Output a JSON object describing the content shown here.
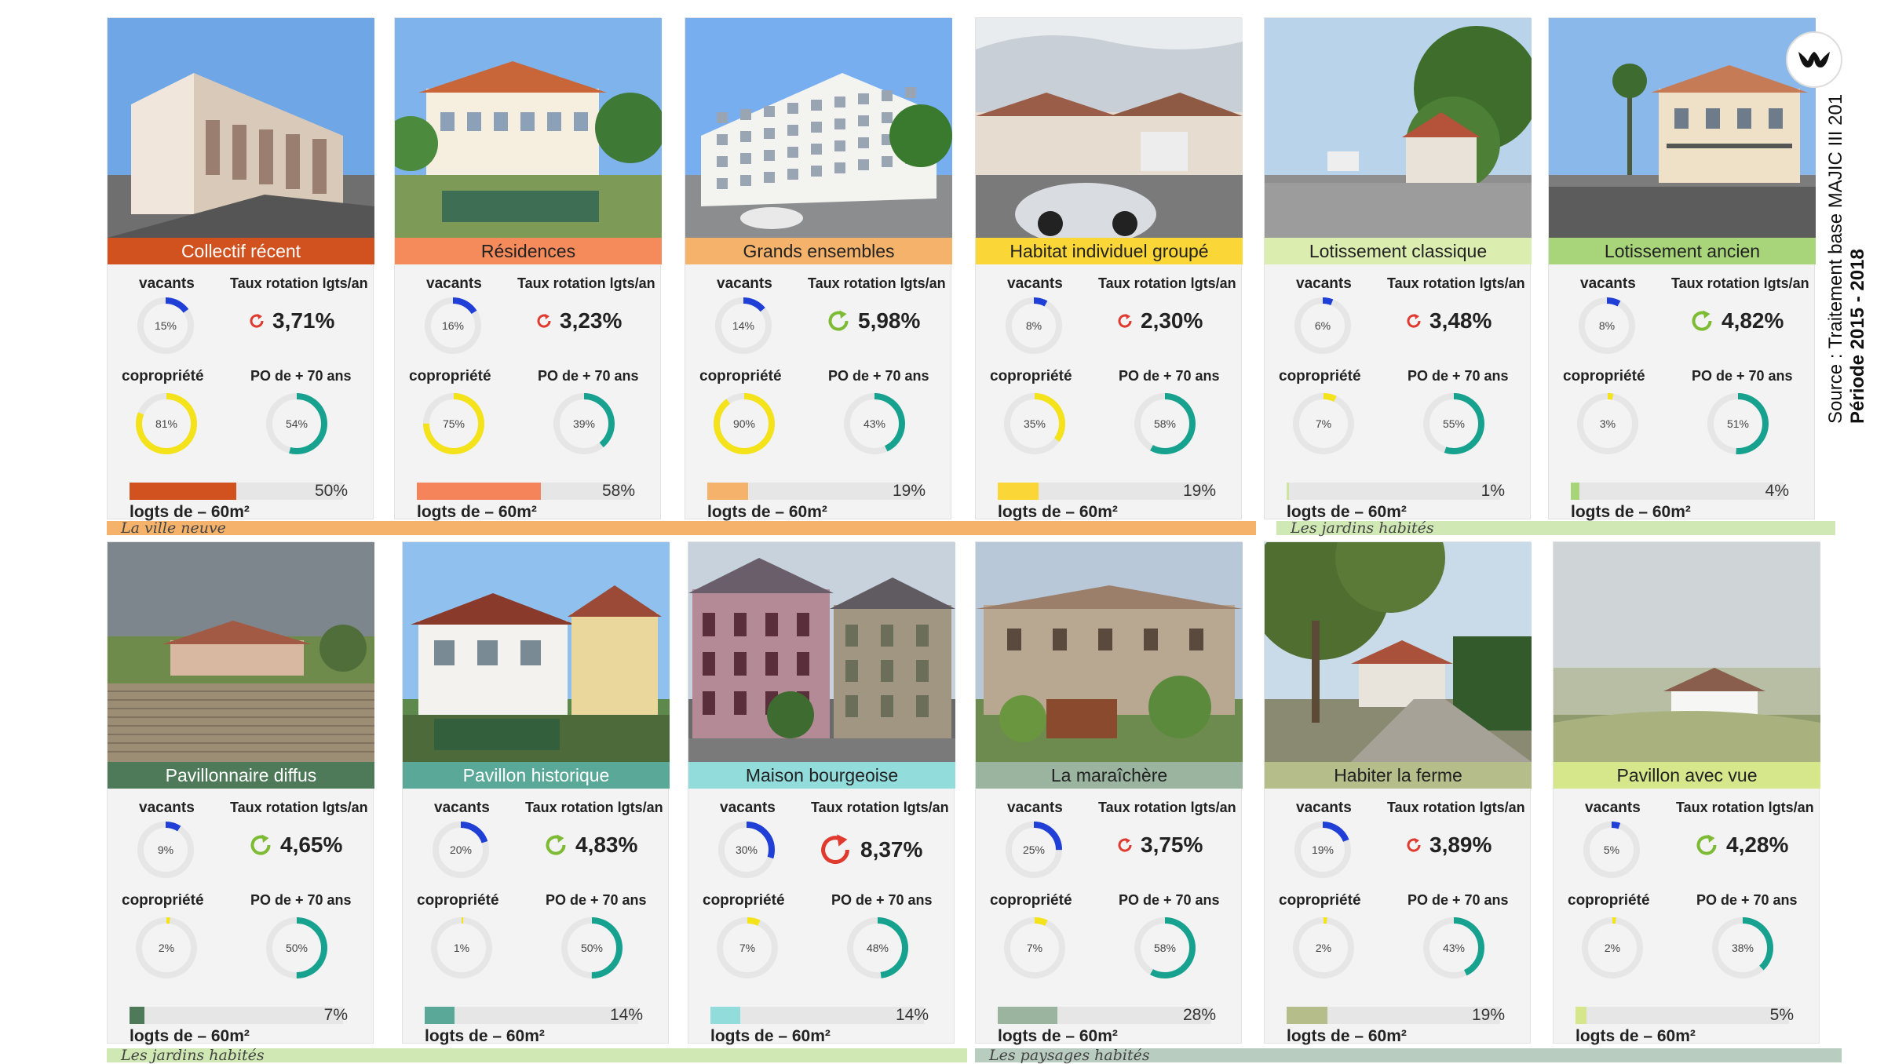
{
  "source": {
    "line1": "Source : Traitement base MAJIC III 201",
    "line2": "Période 2015 - 2018"
  },
  "groups": [
    {
      "label": "La ville neuve",
      "color": "#f5b26b"
    },
    {
      "label": "Les jardins habités",
      "color": "#cfe8b4"
    },
    {
      "label": "Les jardins habités",
      "color": "#cfe8b4"
    },
    {
      "label": "Les paysages habités",
      "color": "#b9ccc0"
    }
  ],
  "headers": {
    "vacants": "vacants",
    "rotation": "Taux rotation lgts/an",
    "copro": "copropriété",
    "po": "PO de + 70 ans",
    "logts": "logts de – 60m²"
  },
  "colors": {
    "vacants": "#1f3fd6",
    "copro": "#f4e21a",
    "po": "#16a28f",
    "track": "#e6e6e6",
    "rot_red": "#e03a2f",
    "rot_green": "#7dbb35"
  },
  "cards": [
    {
      "label": "Collectif récent",
      "color": "#d2521f",
      "text": "#ffffff",
      "vacants": "15%",
      "vacants_v": 15,
      "rotation": "3,71%",
      "rot_icon": "red",
      "copro": "81%",
      "copro_v": 81,
      "po": "54%",
      "po_v": 54,
      "logts": "50%",
      "logts_v": 50,
      "bar": "#d2521f",
      "scene": "apartments"
    },
    {
      "label": "Résidences",
      "color": "#f58a5b",
      "text": "#222222",
      "vacants": "16%",
      "vacants_v": 16,
      "rotation": "3,23%",
      "rot_icon": "red",
      "copro": "75%",
      "copro_v": 75,
      "po": "39%",
      "po_v": 39,
      "logts": "58%",
      "logts_v": 58,
      "bar": "#f5845a",
      "scene": "residence"
    },
    {
      "label": "Grands ensembles",
      "color": "#f5b26b",
      "text": "#222222",
      "vacants": "14%",
      "vacants_v": 14,
      "rotation": "5,98%",
      "rot_icon": "green",
      "copro": "90%",
      "copro_v": 90,
      "po": "43%",
      "po_v": 43,
      "logts": "19%",
      "logts_v": 19,
      "bar": "#f5b26b",
      "scene": "tower"
    },
    {
      "label": "Habitat individuel groupé",
      "color": "#fbd637",
      "text": "#222222",
      "vacants": "8%",
      "vacants_v": 8,
      "rotation": "2,30%",
      "rot_icon": "red",
      "copro": "35%",
      "copro_v": 35,
      "po": "58%",
      "po_v": 58,
      "logts": "19%",
      "logts_v": 19,
      "bar": "#fbd637",
      "scene": "rowhouses"
    },
    {
      "label": "Lotissement classique",
      "color": "#dcedb0",
      "text": "#222222",
      "vacants": "6%",
      "vacants_v": 6,
      "rotation": "3,48%",
      "rot_icon": "red",
      "copro": "7%",
      "copro_v": 7,
      "po": "55%",
      "po_v": 55,
      "logts": "1%",
      "logts_v": 1,
      "bar": "#cfe59f",
      "scene": "street"
    },
    {
      "label": "Lotissement ancien",
      "color": "#a8d57a",
      "text": "#222222",
      "vacants": "8%",
      "vacants_v": 8,
      "rotation": "4,82%",
      "rot_icon": "green",
      "copro": "3%",
      "copro_v": 3,
      "po": "51%",
      "po_v": 51,
      "logts": "4%",
      "logts_v": 4,
      "bar": "#a8d57a",
      "scene": "villa"
    },
    {
      "label": "Pavillonnaire diffus",
      "color": "#4e7a5a",
      "text": "#ffffff",
      "vacants": "9%",
      "vacants_v": 9,
      "rotation": "4,65%",
      "rot_icon": "green",
      "copro": "2%",
      "copro_v": 2,
      "po": "50%",
      "po_v": 50,
      "logts": "7%",
      "logts_v": 7,
      "bar": "#4e7a5a",
      "scene": "pavilion"
    },
    {
      "label": "Pavillon historique",
      "color": "#5aa898",
      "text": "#ffffff",
      "vacants": "20%",
      "vacants_v": 20,
      "rotation": "4,83%",
      "rot_icon": "green",
      "copro": "1%",
      "copro_v": 1,
      "po": "50%",
      "po_v": 50,
      "logts": "14%",
      "logts_v": 14,
      "bar": "#5aa898",
      "scene": "historic"
    },
    {
      "label": "Maison bourgeoise",
      "color": "#92dcdc",
      "text": "#222222",
      "vacants": "30%",
      "vacants_v": 30,
      "rotation": "8,37%",
      "rot_icon": "red",
      "copro": "7%",
      "copro_v": 7,
      "po": "48%",
      "po_v": 48,
      "logts": "14%",
      "logts_v": 14,
      "bar": "#92dcdc",
      "scene": "bourgeois"
    },
    {
      "label": "La maraîchère",
      "color": "#9ab4a0",
      "text": "#222222",
      "vacants": "25%",
      "vacants_v": 25,
      "rotation": "3,75%",
      "rot_icon": "red",
      "copro": "7%",
      "copro_v": 7,
      "po": "58%",
      "po_v": 58,
      "logts": "28%",
      "logts_v": 28,
      "bar": "#9ab4a0",
      "scene": "stone"
    },
    {
      "label": "Habiter la ferme",
      "color": "#b5bd8a",
      "text": "#222222",
      "vacants": "19%",
      "vacants_v": 19,
      "rotation": "3,89%",
      "rot_icon": "red",
      "copro": "2%",
      "copro_v": 2,
      "po": "43%",
      "po_v": 43,
      "logts": "19%",
      "logts_v": 19,
      "bar": "#b5bd8a",
      "scene": "farm"
    },
    {
      "label": "Pavillon avec vue",
      "color": "#d6e68a",
      "text": "#222222",
      "vacants": "5%",
      "vacants_v": 5,
      "rotation": "4,28%",
      "rot_icon": "green",
      "copro": "2%",
      "copro_v": 2,
      "po": "38%",
      "po_v": 38,
      "logts": "5%",
      "logts_v": 5,
      "bar": "#d6e68a",
      "scene": "view"
    }
  ]
}
